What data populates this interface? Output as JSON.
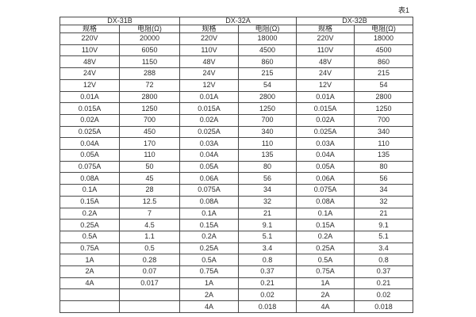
{
  "caption": "表1",
  "table": {
    "groups": [
      {
        "name": "DX-31B",
        "spec_header": "规格",
        "res_header": "电阻(Ω)"
      },
      {
        "name": "DX-32A",
        "spec_header": "规格",
        "res_header": "电阻(Ω)"
      },
      {
        "name": "DX-32B",
        "spec_header": "规格",
        "res_header": "电阻(Ω)"
      }
    ],
    "rows": [
      [
        "220V",
        "20000",
        "220V",
        "18000",
        "220V",
        "18000"
      ],
      [
        "110V",
        "6050",
        "110V",
        "4500",
        "110V",
        "4500"
      ],
      [
        "48V",
        "1150",
        "48V",
        "860",
        "48V",
        "860"
      ],
      [
        "24V",
        "288",
        "24V",
        "215",
        "24V",
        "215"
      ],
      [
        "12V",
        "72",
        "12V",
        "54",
        "12V",
        "54"
      ],
      [
        "0.01A",
        "2800",
        "0.01A",
        "2800",
        "0.01A",
        "2800"
      ],
      [
        "0.015A",
        "1250",
        "0.015A",
        "1250",
        "0.015A",
        "1250"
      ],
      [
        "0.02A",
        "700",
        "0.02A",
        "700",
        "0.02A",
        "700"
      ],
      [
        "0.025A",
        "450",
        "0.025A",
        "340",
        "0.025A",
        "340"
      ],
      [
        "0.04A",
        "170",
        "0.03A",
        "110",
        "0.03A",
        "110"
      ],
      [
        "0.05A",
        "110",
        "0.04A",
        "135",
        "0.04A",
        "135"
      ],
      [
        "0.075A",
        "50",
        "0.05A",
        "80",
        "0.05A",
        "80"
      ],
      [
        "0.08A",
        "45",
        "0.06A",
        "56",
        "0.06A",
        "56"
      ],
      [
        "0.1A",
        "28",
        "0.075A",
        "34",
        "0.075A",
        "34"
      ],
      [
        "0.15A",
        "12.5",
        "0.08A",
        "32",
        "0.08A",
        "32"
      ],
      [
        "0.2A",
        "7",
        "0.1A",
        "21",
        "0.1A",
        "21"
      ],
      [
        "0.25A",
        "4.5",
        "0.15A",
        "9.1",
        "0.15A",
        "9.1"
      ],
      [
        "0.5A",
        "1.1",
        "0.2A",
        "5.1",
        "0.2A",
        "5.1"
      ],
      [
        "0.75A",
        "0.5",
        "0.25A",
        "3.4",
        "0.25A",
        "3.4"
      ],
      [
        "1A",
        "0.28",
        "0.5A",
        "0.8",
        "0.5A",
        "0.8"
      ],
      [
        "2A",
        "0.07",
        "0.75A",
        "0.37",
        "0.75A",
        "0.37"
      ],
      [
        "4A",
        "0.017",
        "1A",
        "0.21",
        "1A",
        "0.21"
      ],
      [
        "",
        "",
        "2A",
        "0.02",
        "2A",
        "0.02"
      ],
      [
        "",
        "",
        "4A",
        "0.018",
        "4A",
        "0.018"
      ]
    ]
  }
}
